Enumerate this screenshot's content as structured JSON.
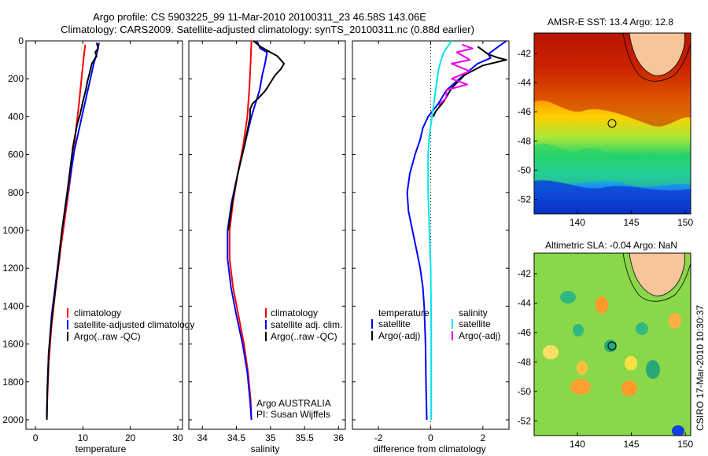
{
  "header": {
    "line1": "Argo profile: CS 5903225_99 11-Mar-2010 20100311_23 46.58S 143.06E",
    "line2": "Climatology: CARS2009. Satellite-adjusted climatology: synTS_20100311.nc (0.88d earlier)"
  },
  "side_label": "CSIRO 17-Mar-2010 10:30:37",
  "colors": {
    "climatology": "#ff0000",
    "satellite": "#0000ff",
    "argo": "#000000",
    "sat_salinity": "#00e5ee",
    "argo_adj_salinity": "#ee00ee"
  },
  "chart_data": [
    {
      "type": "line",
      "xlabel": "temperature",
      "xlim": [
        -2,
        31
      ],
      "ylim": [
        2050,
        0
      ],
      "xticks": [
        "0",
        "10",
        "20",
        "30"
      ],
      "yticks": [
        "0",
        "200",
        "400",
        "600",
        "800",
        "1000",
        "1200",
        "1400",
        "1600",
        "1800",
        "2000"
      ],
      "legend": [
        "climatology",
        "satellite-adjusted climatology",
        "Argo(..raw -QC)"
      ],
      "series": [
        {
          "name": "climatology",
          "points": [
            [
              10.5,
              20
            ],
            [
              10.2,
              80
            ],
            [
              9.7,
              200
            ],
            [
              9.1,
              350
            ],
            [
              8.4,
              500
            ],
            [
              7.5,
              700
            ],
            [
              6.4,
              900
            ],
            [
              5.3,
              1100
            ],
            [
              4.3,
              1300
            ],
            [
              3.4,
              1500
            ],
            [
              2.8,
              1700
            ],
            [
              2.5,
              1900
            ],
            [
              2.4,
              2000
            ]
          ]
        },
        {
          "name": "satellite-adjusted climatology",
          "points": [
            [
              13.4,
              10
            ],
            [
              13,
              60
            ],
            [
              12.3,
              120
            ],
            [
              11.4,
              220
            ],
            [
              10.5,
              320
            ],
            [
              9.6,
              420
            ],
            [
              8.2,
              580
            ],
            [
              6.8,
              800
            ],
            [
              5.6,
              1000
            ],
            [
              4.4,
              1250
            ],
            [
              3.4,
              1450
            ],
            [
              2.8,
              1650
            ],
            [
              2.5,
              1850
            ],
            [
              2.4,
              2000
            ]
          ]
        },
        {
          "name": "Argo(..raw -QC)",
          "points": [
            [
              12.9,
              10
            ],
            [
              13.2,
              40
            ],
            [
              12.6,
              60
            ],
            [
              12.9,
              80
            ],
            [
              11.9,
              120
            ],
            [
              11.5,
              160
            ],
            [
              11.0,
              210
            ],
            [
              10.6,
              260
            ],
            [
              10.0,
              320
            ],
            [
              9.4,
              390
            ],
            [
              8.8,
              440
            ],
            [
              7.9,
              560
            ],
            [
              6.9,
              760
            ],
            [
              5.6,
              1000
            ],
            [
              4.5,
              1250
            ],
            [
              3.5,
              1450
            ],
            [
              2.8,
              1650
            ],
            [
              2.5,
              1850
            ],
            [
              2.4,
              2000
            ]
          ]
        }
      ]
    },
    {
      "type": "line",
      "xlabel": "salinity",
      "xlim": [
        33.8,
        36.1
      ],
      "ylim": [
        2050,
        0
      ],
      "xticks": [
        "34",
        "34.5",
        "35",
        "35.5",
        "36"
      ],
      "legend": [
        "climatology",
        "satellite adj. clim.",
        "Argo(..raw -QC)"
      ],
      "annotation": [
        "Argo AUSTRALIA",
        "PI: Susan Wijffels"
      ],
      "series": [
        {
          "name": "climatology",
          "points": [
            [
              34.72,
              0
            ],
            [
              34.71,
              100
            ],
            [
              34.69,
              250
            ],
            [
              34.66,
              400
            ],
            [
              34.6,
              550
            ],
            [
              34.52,
              700
            ],
            [
              34.45,
              850
            ],
            [
              34.4,
              1000
            ],
            [
              34.4,
              1150
            ],
            [
              34.45,
              1300
            ],
            [
              34.53,
              1450
            ],
            [
              34.61,
              1600
            ],
            [
              34.67,
              1750
            ],
            [
              34.71,
              1900
            ],
            [
              34.72,
              2000
            ]
          ]
        },
        {
          "name": "satellite adj. clim.",
          "points": [
            [
              34.8,
              0
            ],
            [
              34.85,
              40
            ],
            [
              34.95,
              60
            ],
            [
              34.92,
              120
            ],
            [
              34.88,
              180
            ],
            [
              34.84,
              260
            ],
            [
              34.78,
              330
            ],
            [
              34.72,
              400
            ],
            [
              34.62,
              550
            ],
            [
              34.52,
              700
            ],
            [
              34.43,
              850
            ],
            [
              34.37,
              1000
            ],
            [
              34.37,
              1150
            ],
            [
              34.42,
              1300
            ],
            [
              34.5,
              1450
            ],
            [
              34.59,
              1600
            ],
            [
              34.66,
              1750
            ],
            [
              34.7,
              1900
            ],
            [
              34.72,
              2000
            ]
          ]
        },
        {
          "name": "Argo(..raw -QC)",
          "points": [
            [
              34.75,
              0
            ],
            [
              34.85,
              30
            ],
            [
              35.0,
              60
            ],
            [
              35.1,
              80
            ],
            [
              35.2,
              120
            ],
            [
              35.15,
              150
            ],
            [
              35.07,
              180
            ],
            [
              35.0,
              220
            ],
            [
              34.93,
              260
            ],
            [
              34.83,
              300
            ],
            [
              34.74,
              330
            ],
            [
              34.7,
              360
            ],
            [
              34.7,
              400
            ],
            [
              34.62,
              550
            ],
            [
              34.52,
              700
            ],
            [
              34.44,
              850
            ],
            [
              34.38,
              1000
            ]
          ]
        }
      ]
    },
    {
      "type": "line",
      "xlabel": "difference from climatology",
      "xlim": [
        -3,
        3
      ],
      "ylim": [
        2050,
        0
      ],
      "xticks": [
        "-2",
        "0",
        "2"
      ],
      "legend_left": {
        "title": "temperature",
        "entries": [
          "satellite",
          "Argo(-adj)"
        ]
      },
      "legend_right": {
        "title": "salinity",
        "entries": [
          "satellite",
          "Argo(-adj)"
        ]
      },
      "series": [
        {
          "name": "satellite",
          "points": [
            [
              2.9,
              0
            ],
            [
              2.5,
              40
            ],
            [
              2.2,
              70
            ],
            [
              2.3,
              90
            ],
            [
              1.8,
              120
            ],
            [
              1.1,
              200
            ],
            [
              0.6,
              260
            ],
            [
              0.3,
              330
            ],
            [
              -0.1,
              400
            ],
            [
              -0.3,
              460
            ],
            [
              -0.4,
              520
            ],
            [
              -0.6,
              600
            ],
            [
              -0.8,
              700
            ],
            [
              -0.9,
              800
            ],
            [
              -0.85,
              900
            ],
            [
              -0.7,
              1000
            ],
            [
              -0.55,
              1100
            ],
            [
              -0.4,
              1200
            ],
            [
              -0.3,
              1300
            ],
            [
              -0.25,
              1400
            ],
            [
              -0.2,
              1600
            ],
            [
              -0.18,
              1800
            ],
            [
              -0.15,
              2000
            ]
          ]
        },
        {
          "name": "satellite",
          "points": [
            [
              0.8,
              0
            ],
            [
              0.6,
              40
            ],
            [
              0.5,
              60
            ],
            [
              0.4,
              100
            ],
            [
              0.3,
              150
            ],
            [
              0.2,
              250
            ],
            [
              0.05,
              400
            ],
            [
              -0.05,
              500
            ],
            [
              -0.1,
              600
            ],
            [
              -0.1,
              800
            ],
            [
              -0.05,
              1000
            ],
            [
              0.0,
              1200
            ],
            [
              0.02,
              1500
            ],
            [
              0.02,
              2000
            ]
          ]
        },
        {
          "name": "Argo(-adj)",
          "points": [
            [
              1.8,
              30
            ],
            [
              2.2,
              70
            ],
            [
              2.6,
              90
            ],
            [
              2.9,
              100
            ],
            [
              2.0,
              130
            ],
            [
              1.3,
              180
            ],
            [
              0.8,
              250
            ],
            [
              0.5,
              320
            ],
            [
              0.2,
              370
            ],
            [
              0.1,
              400
            ]
          ]
        },
        {
          "name": "Argo(-adj)",
          "points": [
            [
              1.2,
              20
            ],
            [
              1.6,
              40
            ],
            [
              1.0,
              60
            ],
            [
              1.5,
              100
            ],
            [
              0.8,
              120
            ],
            [
              1.5,
              160
            ],
            [
              0.8,
              200
            ],
            [
              1.4,
              230
            ],
            [
              0.6,
              260
            ],
            [
              0.6,
              300
            ],
            [
              0.3,
              340
            ]
          ]
        }
      ]
    }
  ],
  "maps": [
    {
      "title": "AMSR-E SST: 13.4 Argo: 12.8",
      "xticks": [
        "140",
        "145",
        "150"
      ],
      "yticks": [
        "-42",
        "-44",
        "-46",
        "-48",
        "-50",
        "-52"
      ],
      "xlim": [
        136,
        150.5
      ],
      "ylim": [
        -53,
        -40.6
      ],
      "marker": [
        143.06,
        -46.58
      ]
    },
    {
      "title": "Altimetric SLA: -0.04 Argo: NaN",
      "xticks": [
        "140",
        "145",
        "150"
      ],
      "yticks": [
        "-42",
        "-44",
        "-46",
        "-48",
        "-50",
        "-52"
      ],
      "xlim": [
        136,
        150.5
      ],
      "ylim": [
        -53,
        -40.6
      ],
      "marker": [
        143.06,
        -46.58
      ]
    }
  ]
}
